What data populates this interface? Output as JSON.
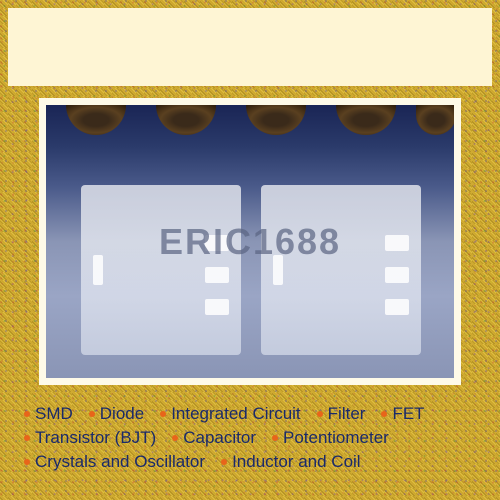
{
  "watermark": "ERIC1688",
  "colors": {
    "bullet_orange": "#e8651a",
    "text_navy": "#1a2a6a",
    "header_bg": "#fef5d4",
    "image_frame": "#fefae8"
  },
  "tags": [
    {
      "label": "SMD"
    },
    {
      "label": "Diode"
    },
    {
      "label": "Integrated Circuit"
    },
    {
      "label": "Filter"
    },
    {
      "label": "FET"
    },
    {
      "label": "Transistor (BJT)"
    },
    {
      "label": "Capacitor"
    },
    {
      "label": "Potentiometer"
    },
    {
      "label": "Crystals and Oscillator"
    },
    {
      "label": "Inductor and Coil"
    }
  ]
}
